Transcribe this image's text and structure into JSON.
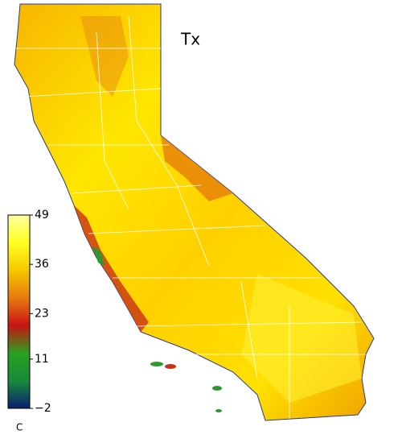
{
  "map": {
    "title": "Tx",
    "colorbar": {
      "lim": [
        -2,
        49
      ],
      "ticks": [
        {
          "value": -2,
          "label": "−2"
        },
        11,
        23,
        36,
        49
      ],
      "colors": [
        "#0a1e6e",
        "#1a8a3a",
        "#2aa020",
        "#c81414",
        "#e87a10",
        "#f5c800",
        "#ffff20",
        "#ffffa0"
      ],
      "unit": "C"
    }
  }
}
